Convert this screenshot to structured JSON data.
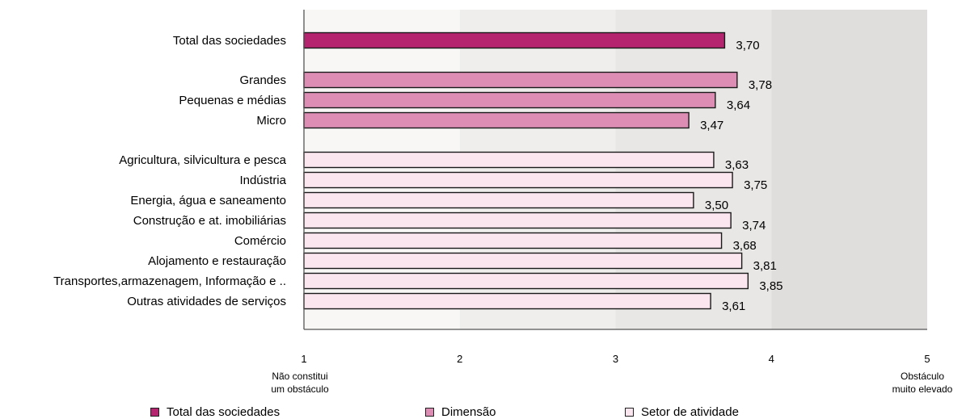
{
  "chart_data": {
    "type": "bar",
    "orientation": "horizontal",
    "title": "",
    "xlim": [
      1,
      5
    ],
    "x_ticks": [
      "1",
      "2",
      "3",
      "4",
      "5"
    ],
    "x_annotations": {
      "left": [
        "Não constitui",
        "um obstáculo"
      ],
      "right": [
        "Obstáculo",
        "muito elevado"
      ]
    },
    "background_bands": [
      "#f8f7f6",
      "#efeeed",
      "#e8e7e6",
      "#dfdedc"
    ],
    "groups": [
      {
        "legend": "Total das sociedades",
        "color": "#b5246f",
        "items": [
          {
            "category": "Total das sociedades",
            "value": 3.7,
            "label": "3,70"
          }
        ]
      },
      {
        "legend": "Dimensão",
        "color": "#dd8db4",
        "items": [
          {
            "category": "Grandes",
            "value": 3.78,
            "label": "3,78"
          },
          {
            "category": "Pequenas e médias",
            "value": 3.64,
            "label": "3,64"
          },
          {
            "category": "Micro",
            "value": 3.47,
            "label": "3,47"
          }
        ]
      },
      {
        "legend": "Setor de atividade",
        "color": "#fbe6ef",
        "items": [
          {
            "category": "Agricultura, silvicultura e pesca",
            "value": 3.63,
            "label": "3,63"
          },
          {
            "category": "Indústria",
            "value": 3.75,
            "label": "3,75"
          },
          {
            "category": "Energia, água e saneamento",
            "value": 3.5,
            "label": "3,50"
          },
          {
            "category": "Construção e at. imobiliárias",
            "value": 3.74,
            "label": "3,74"
          },
          {
            "category": "Comércio",
            "value": 3.68,
            "label": "3,68"
          },
          {
            "category": "Alojamento e restauração",
            "value": 3.81,
            "label": "3,81"
          },
          {
            "category": "Transportes,armazenagem, Informação e ..",
            "value": 3.85,
            "label": "3,85"
          },
          {
            "category": "Outras atividades de serviços",
            "value": 3.61,
            "label": "3,61"
          }
        ]
      }
    ]
  }
}
